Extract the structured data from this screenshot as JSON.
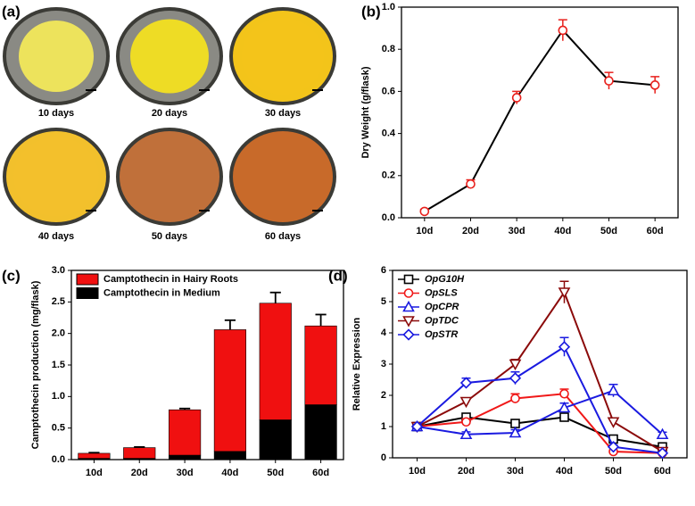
{
  "chart_data": [
    {
      "type": "image",
      "panel": "(a)",
      "captions": [
        "10 days",
        "20 days",
        "30 days",
        "40 days",
        "50 days",
        "60 days"
      ]
    },
    {
      "type": "line",
      "panel": "(b)",
      "ylabel": "Dry Weight (g/flask)",
      "categories": [
        "10d",
        "20d",
        "30d",
        "40d",
        "50d",
        "60d"
      ],
      "series": [
        {
          "color": "#000000",
          "marker_color": "#e8201c",
          "marker": "circle",
          "values": [
            0.03,
            0.16,
            0.57,
            0.89,
            0.65,
            0.63
          ],
          "errors": [
            0.01,
            0.02,
            0.03,
            0.05,
            0.04,
            0.04
          ]
        }
      ],
      "ylim": [
        0,
        1.0
      ],
      "yticks": [
        {
          "value": 0,
          "label": "0.0"
        },
        0.2,
        0.4,
        0.6,
        0.8,
        {
          "value": 1.0,
          "label": "1.0"
        }
      ]
    },
    {
      "type": "stacked-bar",
      "panel": "(c)",
      "ylabel": "Camptothecin production (mg/flask)",
      "categories": [
        "10d",
        "20d",
        "30d",
        "40d",
        "50d",
        "60d"
      ],
      "series": [
        {
          "name": "Camptothecin in Hairy Roots",
          "color": "#f01010",
          "values": [
            0.08,
            0.17,
            0.72,
            1.93,
            1.85,
            1.25
          ],
          "errors": [
            0.01,
            0.01,
            0.02,
            0.15,
            0.17,
            0.18
          ]
        },
        {
          "name": "Camptothecin in Medium",
          "color": "#000000",
          "values": [
            0.02,
            0.02,
            0.07,
            0.13,
            0.63,
            0.87
          ],
          "errors": [
            0.01,
            0.01,
            0.01,
            0.04,
            0.07,
            0.08
          ]
        }
      ],
      "legend": "top-left",
      "ylim": [
        0,
        3.0
      ],
      "yticks": [
        {
          "value": 0,
          "label": "0.0"
        },
        0.5,
        {
          "value": 1.0,
          "label": "1.0"
        },
        1.5,
        {
          "value": 2.0,
          "label": "2.0"
        },
        2.5,
        {
          "value": 3.0,
          "label": "3.0"
        }
      ]
    },
    {
      "type": "line",
      "panel": "(d)",
      "ylabel": "Relative Expression",
      "categories": [
        "10d",
        "20d",
        "30d",
        "40d",
        "50d",
        "60d"
      ],
      "series": [
        {
          "name": "OpG10H",
          "color": "#000000",
          "marker": "square",
          "values": [
            1.0,
            1.3,
            1.1,
            1.3,
            0.6,
            0.35
          ],
          "errors": [
            0.05,
            0.1,
            0.1,
            0.1,
            0.05,
            0.05
          ]
        },
        {
          "name": "OpSLS",
          "color": "#f01818",
          "marker": "circle",
          "values": [
            1.0,
            1.15,
            1.9,
            2.05,
            0.2,
            0.15
          ],
          "errors": [
            0.05,
            0.1,
            0.15,
            0.15,
            0.05,
            0.03
          ]
        },
        {
          "name": "OpCPR",
          "color": "#1a1ae0",
          "marker": "triangle-up",
          "values": [
            1.0,
            0.75,
            0.8,
            1.6,
            2.15,
            0.75
          ],
          "errors": [
            0.05,
            0.08,
            0.1,
            0.15,
            0.2,
            0.07
          ]
        },
        {
          "name": "OpTDC",
          "color": "#8b0a0a",
          "marker": "triangle-down",
          "values": [
            1.0,
            1.8,
            3.0,
            5.3,
            1.15,
            0.2
          ],
          "errors": [
            0.05,
            0.12,
            0.15,
            0.35,
            0.1,
            0.03
          ]
        },
        {
          "name": "OpSTR",
          "color": "#1a1ae0",
          "marker": "diamond",
          "values": [
            1.0,
            2.4,
            2.55,
            3.55,
            0.35,
            0.15
          ],
          "errors": [
            0.05,
            0.15,
            0.2,
            0.3,
            0.05,
            0.03
          ]
        }
      ],
      "legend": "top-left",
      "ylim": [
        0,
        6
      ],
      "yticks": [
        0,
        1,
        2,
        3,
        4,
        5,
        6
      ]
    }
  ]
}
